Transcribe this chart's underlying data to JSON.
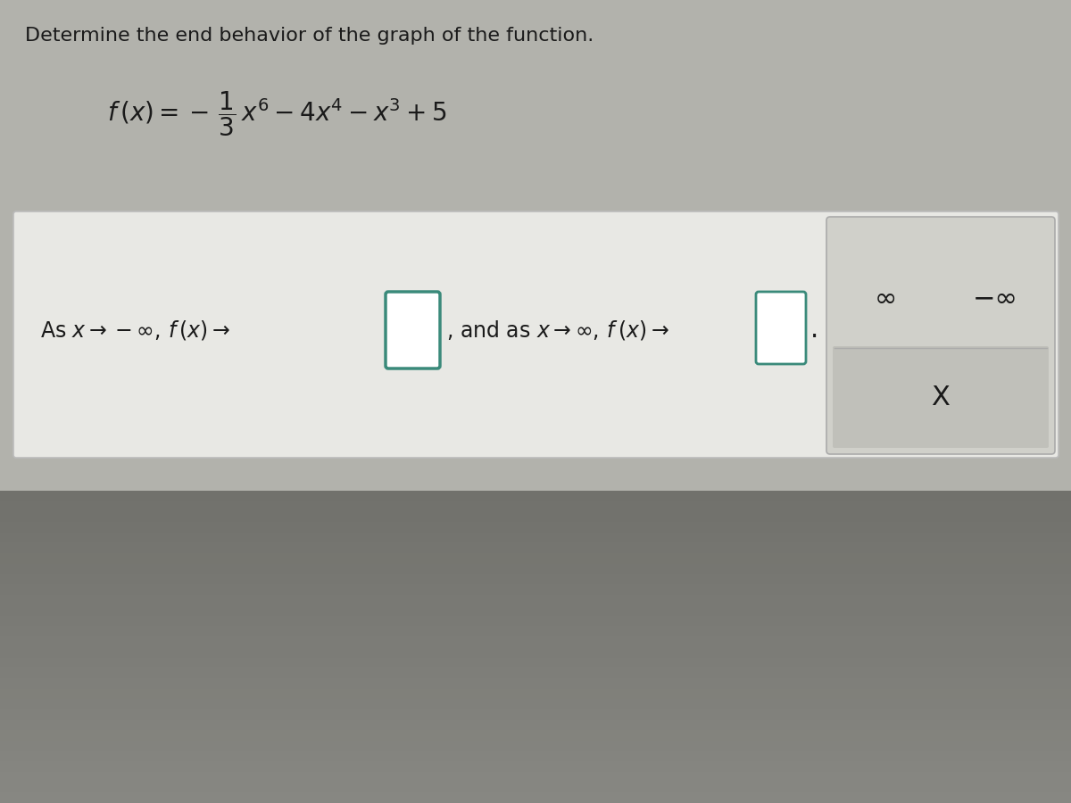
{
  "title": "Determine the end behavior of the graph of the function.",
  "title_fontsize": 16,
  "title_color": "#1a1a1a",
  "bg_color_top": "#b8b8b2",
  "bg_color_bottom": "#7a7a72",
  "panel_bg": "#e8e8e4",
  "panel_border": "#cccccc",
  "input_box_color": "#ffffff",
  "input_box_border": "#3a8a7a",
  "font_color": "#1a1a1a",
  "question_fontsize": 17,
  "func_fontsize": 20,
  "option_fontsize": 22,
  "opt_panel_bg": "#d0d0ca",
  "opt_panel_border": "#aaaaaa",
  "opt_row2_bg": "#c0c0ba",
  "period_color": "#1a1a1a"
}
